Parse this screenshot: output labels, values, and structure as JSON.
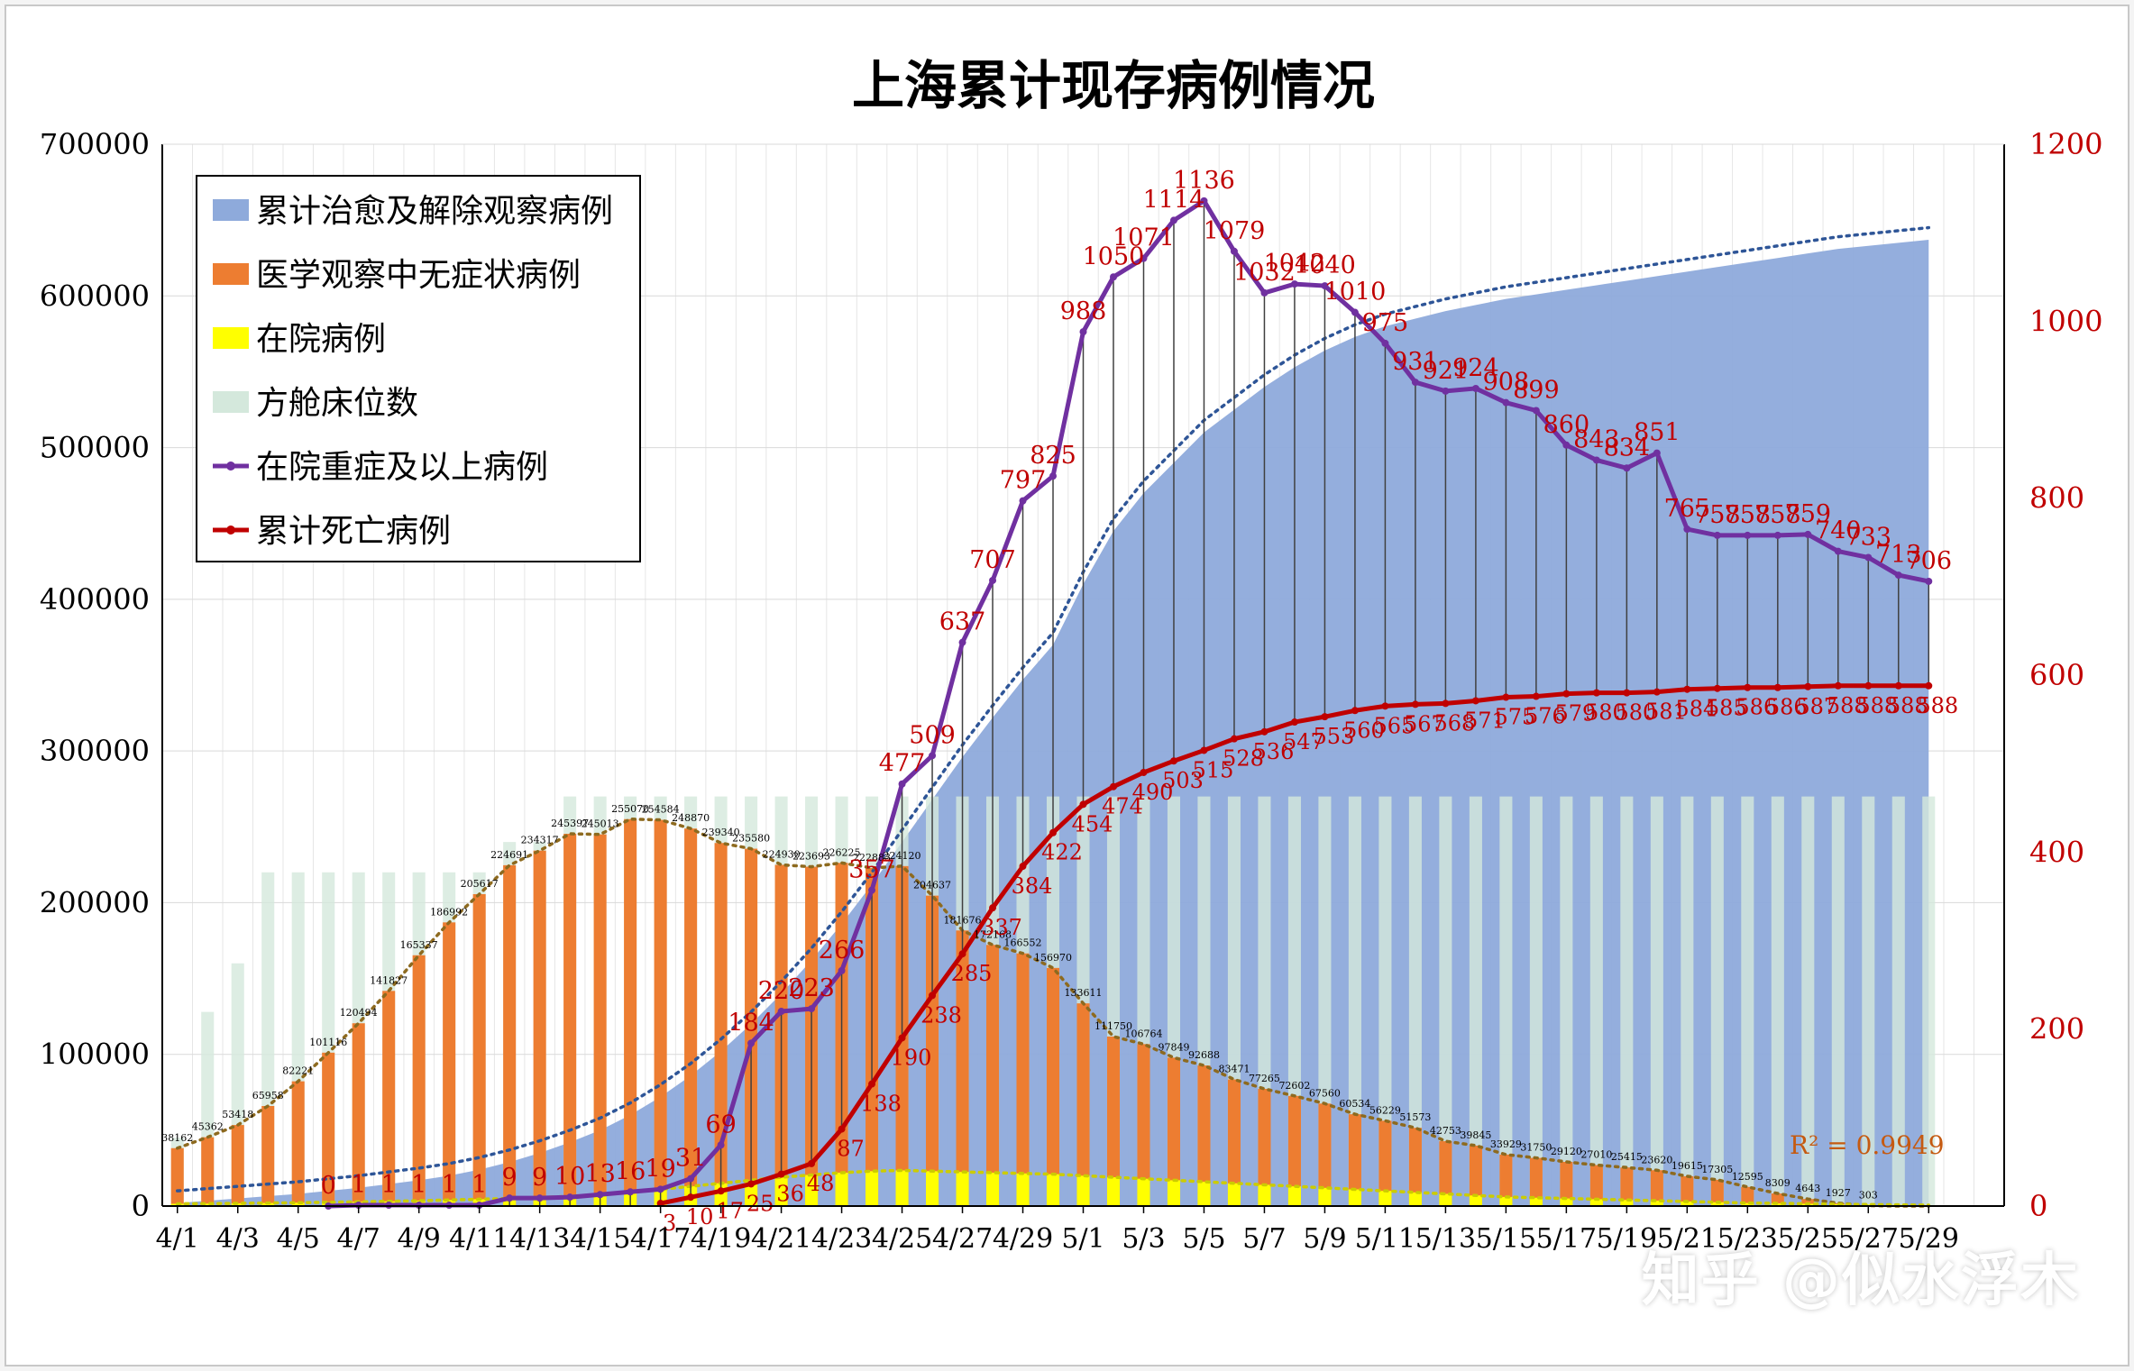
{
  "chart_data": {
    "type": "bar",
    "title": "上海累计现存病例情况",
    "categories": [
      "4/1",
      "4/2",
      "4/3",
      "4/4",
      "4/5",
      "4/6",
      "4/7",
      "4/8",
      "4/9",
      "4/10",
      "4/11",
      "4/12",
      "4/13",
      "4/14",
      "4/15",
      "4/16",
      "4/17",
      "4/18",
      "4/19",
      "4/20",
      "4/21",
      "4/22",
      "4/23",
      "4/24",
      "4/25",
      "4/26",
      "4/27",
      "4/28",
      "4/29",
      "4/30",
      "5/1",
      "5/2",
      "5/3",
      "5/4",
      "5/5",
      "5/6",
      "5/7",
      "5/8",
      "5/9",
      "5/10",
      "5/11",
      "5/12",
      "5/13",
      "5/14",
      "5/15",
      "5/16",
      "5/17",
      "5/18",
      "5/19",
      "5/20",
      "5/21",
      "5/22",
      "5/23",
      "5/24",
      "5/25",
      "5/26",
      "5/27",
      "5/28",
      "5/29"
    ],
    "x_tick_labels": [
      "4/1",
      "4/3",
      "4/5",
      "4/7",
      "4/9",
      "4/11",
      "4/13",
      "4/15",
      "4/17",
      "4/19",
      "4/21",
      "4/23",
      "4/25",
      "4/27",
      "4/29",
      "5/1",
      "5/3",
      "5/5",
      "5/7",
      "5/9",
      "5/11",
      "5/13",
      "5/15",
      "5/17",
      "5/19",
      "5/21",
      "5/23",
      "5/25",
      "5/27",
      "5/29"
    ],
    "y_left": {
      "min": 0,
      "max": 700000,
      "ticks": [
        "0",
        "100000",
        "200000",
        "300000",
        "400000",
        "500000",
        "600000",
        "700000"
      ]
    },
    "y_right": {
      "min": 0,
      "max": 1200,
      "ticks": [
        "0",
        "200",
        "400",
        "600",
        "800",
        "1000",
        "1200"
      ]
    },
    "grid": true,
    "legend_position": "top-left",
    "series": [
      {
        "name": "累计治愈及解除观察病例",
        "kind": "area",
        "axis": "left",
        "color": "#8eaadb",
        "values": [
          2000,
          3500,
          5000,
          6500,
          8000,
          10000,
          12000,
          14500,
          17000,
          20000,
          24000,
          29000,
          35000,
          42000,
          50000,
          60000,
          72000,
          86000,
          102000,
          120000,
          140000,
          162000,
          186000,
          212000,
          240000,
          268000,
          296000,
          322000,
          347000,
          370000,
          410000,
          445000,
          470000,
          490000,
          510000,
          525000,
          540000,
          553000,
          564000,
          573000,
          580000,
          585000,
          590000,
          594000,
          598000,
          601000,
          604000,
          607000,
          610000,
          613000,
          616000,
          619000,
          622000,
          625000,
          628000,
          631000,
          633000,
          635000,
          637000
        ]
      },
      {
        "name": "医学观察中无症状病例",
        "kind": "bar",
        "axis": "left",
        "color": "#ed7d31",
        "values": [
          38162,
          45362,
          53418,
          65958,
          82221,
          101116,
          120494,
          141827,
          165337,
          186992,
          205617,
          224691,
          234317,
          245397,
          245013,
          255070,
          254584,
          248870,
          239340,
          235580,
          224930,
          223693,
          226225,
          222883,
          224120,
          204637,
          181676,
          172168,
          166552,
          156970,
          133611,
          111750,
          106764,
          97849,
          92688,
          83471,
          77265,
          72602,
          67560,
          60534,
          56229,
          51573,
          42753,
          39845,
          33929,
          31750,
          29120,
          27010,
          25415,
          23620,
          19615,
          17305,
          12595,
          8309,
          4643,
          1927,
          303,
          0,
          0
        ],
        "data_labels": [
          "38162",
          "45362",
          "53418",
          "65958",
          "82221",
          "101116",
          "120494",
          "141827",
          "165337",
          "186992",
          "205617",
          "224691",
          "234317",
          "245397",
          "245013",
          "255070",
          "254584",
          "248870",
          "239340",
          "235580",
          "224930",
          "223693",
          "226225",
          "222883",
          "224120",
          "204637",
          "181676",
          "172168",
          "166552",
          "156970",
          "133611",
          "111750",
          "106764",
          "97849",
          "92688",
          "83471",
          "77265",
          "72602",
          "67560",
          "60534",
          "56229",
          "51573",
          "42753",
          "39845",
          "33929",
          "31750",
          "29120",
          "27010",
          "25415",
          "23620",
          "19615",
          "17305",
          "12595",
          "8309",
          "4643",
          "1927",
          "303",
          "",
          ""
        ]
      },
      {
        "name": "在院病例",
        "kind": "bar",
        "axis": "left",
        "color": "#ffff00",
        "values": [
          1500,
          1600,
          1800,
          2000,
          2200,
          2500,
          2800,
          3100,
          3500,
          4000,
          4500,
          5000,
          5500,
          6500,
          7500,
          9000,
          11000,
          13000,
          15000,
          17000,
          19000,
          20500,
          22000,
          23000,
          23500,
          23000,
          22500,
          22000,
          21500,
          21000,
          20000,
          19000,
          18000,
          17000,
          16000,
          15000,
          14000,
          13000,
          12000,
          11000,
          10000,
          9000,
          8000,
          7000,
          6000,
          5500,
          5000,
          4500,
          4000,
          3500,
          3000,
          2500,
          2000,
          1800,
          1500,
          1200,
          1000,
          800,
          600
        ]
      },
      {
        "name": "方舱床位数",
        "kind": "bar",
        "axis": "left",
        "color": "#d4e8dc",
        "values": [
          45000,
          128000,
          160000,
          220000,
          220000,
          220000,
          220000,
          220000,
          220000,
          220000,
          220000,
          240000,
          240000,
          270000,
          270000,
          270000,
          270000,
          270000,
          270000,
          270000,
          270000,
          270000,
          270000,
          270000,
          270000,
          270000,
          270000,
          270000,
          270000,
          270000,
          270000,
          270000,
          270000,
          270000,
          270000,
          270000,
          270000,
          270000,
          270000,
          270000,
          270000,
          270000,
          270000,
          270000,
          270000,
          270000,
          270000,
          270000,
          270000,
          270000,
          270000,
          270000,
          270000,
          270000,
          270000,
          270000,
          270000,
          270000,
          270000
        ]
      },
      {
        "name": "在院重症及以上病例",
        "kind": "line",
        "axis": "right",
        "color": "#7030a0",
        "values": [
          null,
          null,
          null,
          null,
          null,
          0,
          1,
          1,
          1,
          1,
          1,
          9,
          9,
          10,
          13,
          16,
          19,
          31,
          69,
          184,
          220,
          223,
          266,
          357,
          477,
          509,
          637,
          707,
          797,
          825,
          988,
          1050,
          1071,
          1114,
          1136,
          1079,
          1032,
          1042,
          1040,
          1010,
          975,
          931,
          921,
          924,
          908,
          899,
          860,
          843,
          834,
          851,
          765,
          758,
          758,
          758,
          759,
          740,
          733,
          713,
          706
        ],
        "data_labels": [
          "",
          "",
          "",
          "",
          "",
          "0",
          "1",
          "1",
          "1",
          "1",
          "1",
          "9",
          "9",
          "10",
          "13",
          "16",
          "19",
          "31",
          "69",
          "184",
          "220",
          "223",
          "266",
          "357",
          "477",
          "509",
          "637",
          "707",
          "797",
          "825",
          "988",
          "1050",
          "1071",
          "1114",
          "1136",
          "1079",
          "1032",
          "1042",
          "1040",
          "1010",
          "975",
          "931",
          "921",
          "924",
          "908",
          "899",
          "860",
          "843",
          "834",
          "851",
          "765",
          "758",
          "758",
          "758",
          "759",
          "740",
          "733",
          "713",
          "706"
        ]
      },
      {
        "name": "累计死亡病例",
        "kind": "line",
        "axis": "right",
        "color": "#c00000",
        "values": [
          null,
          null,
          null,
          null,
          null,
          null,
          null,
          null,
          null,
          null,
          null,
          null,
          null,
          null,
          null,
          null,
          3,
          10,
          17,
          25,
          36,
          48,
          87,
          138,
          190,
          238,
          285,
          337,
          384,
          422,
          454,
          474,
          490,
          503,
          515,
          528,
          536,
          547,
          553,
          560,
          565,
          567,
          568,
          571,
          575,
          576,
          579,
          580,
          580,
          581,
          584,
          585,
          586,
          586,
          587,
          588,
          588,
          588,
          588
        ],
        "data_labels": [
          "",
          "",
          "",
          "",
          "",
          "",
          "",
          "",
          "",
          "",
          "",
          "",
          "",
          "",
          "",
          "",
          "3",
          "10",
          "17",
          "25",
          "36",
          "48",
          "87",
          "138",
          "190",
          "238",
          "285",
          "337",
          "384",
          "422",
          "454",
          "474",
          "490",
          "503",
          "515",
          "528",
          "536",
          "547",
          "553",
          "560",
          "565",
          "567",
          "568",
          "571",
          "575",
          "576",
          "579",
          "580",
          "580",
          "581",
          "584",
          "585",
          "586",
          "586",
          "587",
          "588",
          "588",
          "588",
          "588"
        ]
      }
    ],
    "annotations": [
      {
        "text": "R² = 0.9949",
        "color": "#c55a11"
      }
    ]
  },
  "watermark": "知乎 @似水浮木"
}
